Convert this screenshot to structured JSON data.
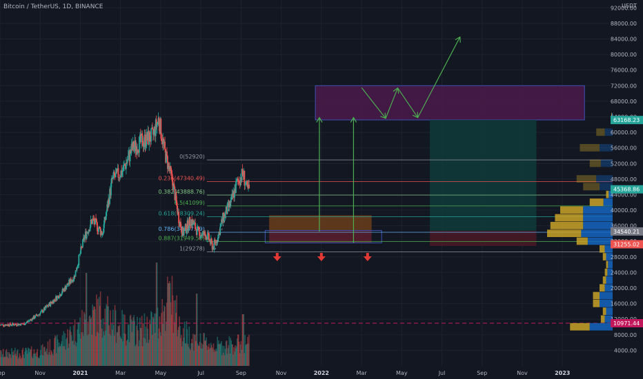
{
  "header": {
    "title": "Bitcoin / TetherUS, 1D, BINANCE"
  },
  "colors": {
    "background": "#131722",
    "up": "#26a69a",
    "down": "#ef5350",
    "grid": "#1e222d",
    "fib_line": "#9598a1",
    "purple_zone": "#4a1a4a",
    "green_zone": "#0f3b3a",
    "orange_zone": "#6b3d1a",
    "green_arrow": "#4caf50",
    "red_arrow": "#e53935",
    "volume_blue": "#1565c0",
    "volume_gold": "#c9a227"
  },
  "chart_data": {
    "type": "candlestick",
    "symbol": "Bitcoin / TetherUS",
    "interval": "1D",
    "exchange": "BINANCE",
    "currency": "USDT",
    "y_ticks": [
      4000,
      8000,
      12000,
      16000,
      20000,
      24000,
      28000,
      32000,
      36000,
      40000,
      44000,
      48000,
      52000,
      56000,
      60000,
      64000,
      68000,
      72000,
      76000,
      80000,
      84000,
      88000,
      92000
    ],
    "y_tick_labels": [
      "4000.00",
      "8000.00",
      "12000.00",
      "16000.00",
      "20000.00",
      "24000.00",
      "28000.00",
      "32000.00",
      "36000.00",
      "40000.00",
      "44000.00",
      "48000.00",
      "52000.00",
      "56000.00",
      "60000.00",
      "64000.00",
      "68000.00",
      "72000.00",
      "76000.00",
      "80000.00",
      "84000.00",
      "88000.00",
      "92000.00"
    ],
    "ylim": [
      0,
      94000
    ],
    "x_labels": [
      "Sep",
      "Nov",
      "2021",
      "Mar",
      "May",
      "Jul",
      "Sep",
      "Nov",
      "2022",
      "Mar",
      "May",
      "Jul",
      "Sep",
      "Nov",
      "2023"
    ],
    "x_label_months": [
      0,
      2,
      4,
      6,
      8,
      10,
      12,
      14,
      16,
      18,
      20,
      22,
      24,
      26,
      28
    ],
    "xlim_months": [
      0,
      30.5
    ],
    "price_path": [
      [
        0,
        10500
      ],
      [
        1.2,
        10800
      ],
      [
        2,
        13500
      ],
      [
        3,
        18500
      ],
      [
        3.7,
        23000
      ],
      [
        4.2,
        33000
      ],
      [
        4.6,
        37500
      ],
      [
        5.1,
        34000
      ],
      [
        5.6,
        48000
      ],
      [
        6.1,
        50000
      ],
      [
        6.6,
        56000
      ],
      [
        7.2,
        58000
      ],
      [
        7.6,
        59000
      ],
      [
        7.9,
        63500
      ],
      [
        8.2,
        55000
      ],
      [
        8.6,
        47000
      ],
      [
        8.9,
        38000
      ],
      [
        9.1,
        34000
      ],
      [
        9.5,
        37500
      ],
      [
        9.9,
        34000
      ],
      [
        10.3,
        33500
      ],
      [
        10.6,
        30500
      ],
      [
        10.8,
        32500
      ],
      [
        11.1,
        38000
      ],
      [
        11.5,
        42000
      ],
      [
        11.8,
        47000
      ],
      [
        12.1,
        49500
      ],
      [
        12.3,
        45000
      ],
      [
        12.4,
        45300
      ]
    ],
    "volume_path": [
      [
        0,
        0.15
      ],
      [
        2,
        0.18
      ],
      [
        3,
        0.3
      ],
      [
        4,
        0.5
      ],
      [
        5,
        0.7
      ],
      [
        6,
        0.5
      ],
      [
        7,
        0.45
      ],
      [
        7.8,
        0.55
      ],
      [
        8.5,
        0.9
      ],
      [
        9,
        0.45
      ],
      [
        10,
        0.3
      ],
      [
        11,
        0.25
      ],
      [
        12.3,
        0.3
      ]
    ],
    "volume_spikes": [
      [
        4.3,
        0.9
      ],
      [
        7.8,
        1.0
      ],
      [
        8.4,
        0.8
      ],
      [
        9.8,
        0.7
      ],
      [
        12.1,
        0.5
      ]
    ],
    "fib_levels": [
      {
        "label": "0(52920)",
        "price": 52920,
        "color": "#9598a1"
      },
      {
        "label": "0.236(47340.49)",
        "price": 47340.49,
        "color": "#ef5350"
      },
      {
        "label": "0.382(43888.76)",
        "price": 43888.76,
        "color": "#81c784"
      },
      {
        "label": "0.5(41099)",
        "price": 41099,
        "color": "#4caf50"
      },
      {
        "label": "0.618(38309.24)",
        "price": 38309.24,
        "color": "#26a69a"
      },
      {
        "label": "0.786(34337.39)",
        "price": 34337.39,
        "color": "#64b5f6"
      },
      {
        "label": "0.887(31949.58)",
        "price": 31949.58,
        "color": "#4caf50"
      },
      {
        "label": "1(29278)",
        "price": 29278,
        "color": "#9598a1"
      }
    ],
    "price_tags": [
      {
        "label": "63168.23",
        "price": 63168.23,
        "color": "#26a69a"
      },
      {
        "label": "45368.86",
        "price": 45368.86,
        "color": "#26a69a"
      },
      {
        "label": "34540.21",
        "price": 34540.21,
        "color": "#787b86"
      },
      {
        "label": "31255.02",
        "price": 31255.02,
        "color": "#ef5350"
      },
      {
        "label": "10971.44",
        "price": 10971.44,
        "color": "#c2185b"
      }
    ],
    "volume_profile": [
      {
        "price": 64000,
        "total": 0.02,
        "up": 0.01
      },
      {
        "price": 60000,
        "total": 0.25,
        "up": 0.12
      },
      {
        "price": 56000,
        "total": 0.5,
        "up": 0.2
      },
      {
        "price": 52000,
        "total": 0.35,
        "up": 0.18
      },
      {
        "price": 48000,
        "total": 0.55,
        "up": 0.25
      },
      {
        "price": 46000,
        "total": 0.45,
        "up": 0.2
      },
      {
        "price": 44000,
        "total": 0.1,
        "up": 0.06
      },
      {
        "price": 42000,
        "total": 0.35,
        "up": 0.14
      },
      {
        "price": 40000,
        "total": 0.8,
        "up": 0.45
      },
      {
        "price": 38000,
        "total": 0.88,
        "up": 0.45
      },
      {
        "price": 36000,
        "total": 0.95,
        "up": 0.45
      },
      {
        "price": 34000,
        "total": 1.0,
        "up": 0.48
      },
      {
        "price": 32000,
        "total": 0.55,
        "up": 0.38
      },
      {
        "price": 30000,
        "total": 0.2,
        "up": 0.12
      },
      {
        "price": 28000,
        "total": 0.15,
        "up": 0.1
      },
      {
        "price": 26000,
        "total": 0.1,
        "up": 0.07
      },
      {
        "price": 24000,
        "total": 0.12,
        "up": 0.08
      },
      {
        "price": 22000,
        "total": 0.15,
        "up": 0.1
      },
      {
        "price": 20000,
        "total": 0.2,
        "up": 0.12
      },
      {
        "price": 18000,
        "total": 0.3,
        "up": 0.2
      },
      {
        "price": 16000,
        "total": 0.3,
        "up": 0.2
      },
      {
        "price": 14000,
        "total": 0.15,
        "up": 0.1
      },
      {
        "price": 12000,
        "total": 0.18,
        "up": 0.12
      },
      {
        "price": 10000,
        "total": 0.65,
        "up": 0.35
      }
    ],
    "zones": [
      {
        "name": "target-zone",
        "x0": 15.7,
        "x1": 29.1,
        "y0": 63200,
        "y1": 72000,
        "fill": "#4a1a4a",
        "stroke": "#3f51b5"
      },
      {
        "name": "take-profit-zone",
        "x0": 21.4,
        "x1": 26.7,
        "y0": 34700,
        "y1": 63200,
        "fill": "#0f3b3a",
        "stroke": "none"
      },
      {
        "name": "buy-zone",
        "x0": 13.4,
        "x1": 18.5,
        "y0": 34700,
        "y1": 38700,
        "fill": "#6b3d1a",
        "stroke": "none"
      },
      {
        "name": "stop-zone-left",
        "x0": 13.4,
        "x1": 18.5,
        "y0": 31500,
        "y1": 34700,
        "fill": "#5a1e2e",
        "stroke": "none"
      },
      {
        "name": "stop-zone-right",
        "x0": 21.4,
        "x1": 26.7,
        "y0": 30800,
        "y1": 34700,
        "fill": "#4a1a24",
        "stroke": "none"
      }
    ],
    "buy_box_outline": {
      "x0": 13.2,
      "x1": 19.0,
      "y0": 31600,
      "y1": 34800
    },
    "green_arrows": [
      {
        "from": [
          15.9,
          34500
        ],
        "to": [
          15.9,
          63800
        ]
      },
      {
        "from": [
          17.6,
          31600
        ],
        "to": [
          17.6,
          63800
        ]
      }
    ],
    "zigzag_path": [
      [
        18.0,
        71500
      ],
      [
        19.2,
        63600
      ],
      [
        19.8,
        71400
      ],
      [
        20.8,
        63800
      ],
      [
        22.9,
        84500
      ]
    ],
    "red_arrows_months": [
      13.8,
      16.0,
      18.3
    ],
    "red_arrows_price": 29200,
    "dashed_level": {
      "price": 10971.44,
      "x0": 0,
      "x1": 30.5
    }
  }
}
